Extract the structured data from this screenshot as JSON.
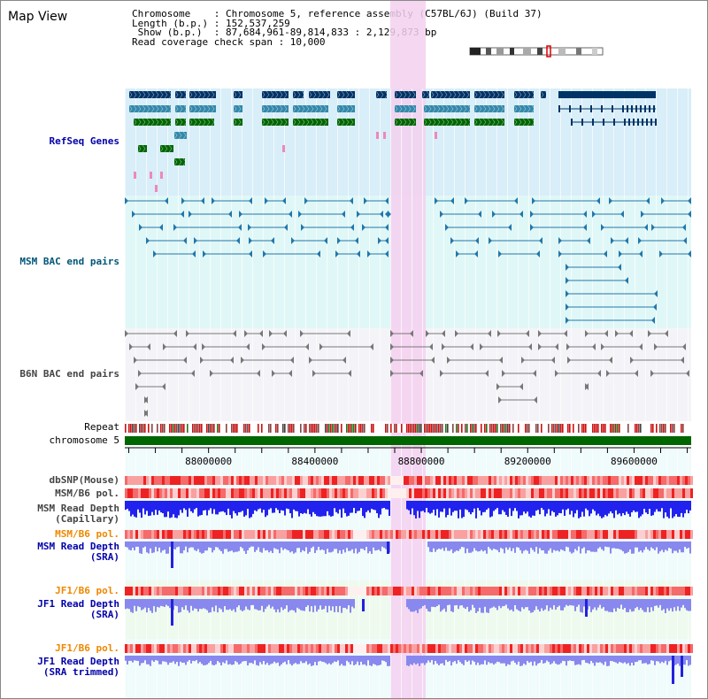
{
  "window": {
    "title": "Map View"
  },
  "info": {
    "line1": "Chromosome    : Chromosome 5, reference assembly (C57BL/6J) (Build 37)",
    "line2": "Length (b.p.) : 152,537,259",
    "line3": " Show (b.p.)  : 87,684,961-89,814,833 : 2,129,873 bp",
    "line4": "Read coverage check span : 10,000"
  },
  "tracks": [
    {
      "id": "refseq",
      "label": "RefSeq Genes",
      "color": "#0000aa"
    },
    {
      "id": "msm-bac",
      "label": "MSM BAC end pairs",
      "color": "#005577"
    },
    {
      "id": "b6n-bac",
      "label": "B6N BAC end pairs",
      "color": "#444444"
    },
    {
      "id": "repeat",
      "label": "Repeat",
      "color": "#000000"
    },
    {
      "id": "chromosome",
      "label": "chromosome 5",
      "color": "#000000"
    },
    {
      "id": "dbsnp",
      "label": "dbSNP(Mouse)",
      "color": "#444444"
    },
    {
      "id": "msm-b6-pol-1",
      "label": "MSM/B6 pol.",
      "color": "#444444"
    },
    {
      "id": "msm-depth-cap",
      "label": "MSM Read Depth\n(Capillary)",
      "color": "#444444"
    },
    {
      "id": "msm-b6-pol-2",
      "label": "MSM/B6 pol.",
      "color": "#ee8800"
    },
    {
      "id": "msm-depth-sra",
      "label": "MSM Read Depth\n(SRA)",
      "color": "#0000aa"
    },
    {
      "id": "jf1-b6-pol-1",
      "label": "JF1/B6 pol.",
      "color": "#ee8800"
    },
    {
      "id": "jf1-depth-sra",
      "label": "JF1 Read Depth\n(SRA)",
      "color": "#0000aa"
    },
    {
      "id": "jf1-b6-pol-2",
      "label": "JF1/B6 pol.",
      "color": "#ee8800"
    },
    {
      "id": "jf1-depth-trim",
      "label": "JF1 Read Depth\n(SRA trimmed)",
      "color": "#0000aa"
    }
  ],
  "axis": {
    "start": 87684961,
    "end": 89814833,
    "ticks": [
      "88000000",
      "88400000",
      "88800000",
      "89200000",
      "89600000"
    ],
    "tick_values": [
      88000000,
      88400000,
      88800000,
      89200000,
      89600000
    ]
  },
  "colors": {
    "refseq_dark": "#003366",
    "refseq_mid": "#3388aa",
    "refseq_green": "#006600",
    "refseq_pink": "#ee88bb",
    "refseq_bg": "#d8eef8",
    "msm_bg": "#e0f7f7",
    "b6n_bg": "#f4f4f8",
    "highlight": "#f5d0f0",
    "chromosome": "#006600",
    "depth_dark": "#2222ee",
    "depth_light": "#8888ee"
  }
}
